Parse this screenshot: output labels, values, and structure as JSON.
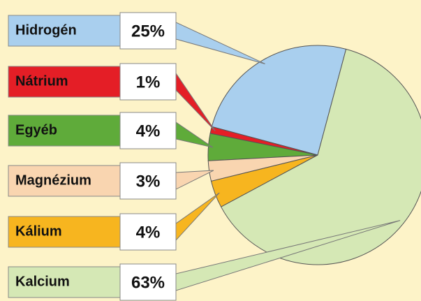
{
  "chart_data": {
    "type": "pie",
    "categories": [
      "Hidrogén",
      "Nátrium",
      "Egyéb",
      "Magnézium",
      "Kálium",
      "Kalcium"
    ],
    "values": [
      25,
      1,
      4,
      3,
      4,
      63
    ],
    "value_labels": [
      "25%",
      "1%",
      "4%",
      "3%",
      "4%",
      "63%"
    ],
    "colors": [
      "#a9cfee",
      "#e41e26",
      "#5fab3a",
      "#f9d5b0",
      "#f7b51f",
      "#d5e8b5"
    ]
  }
}
